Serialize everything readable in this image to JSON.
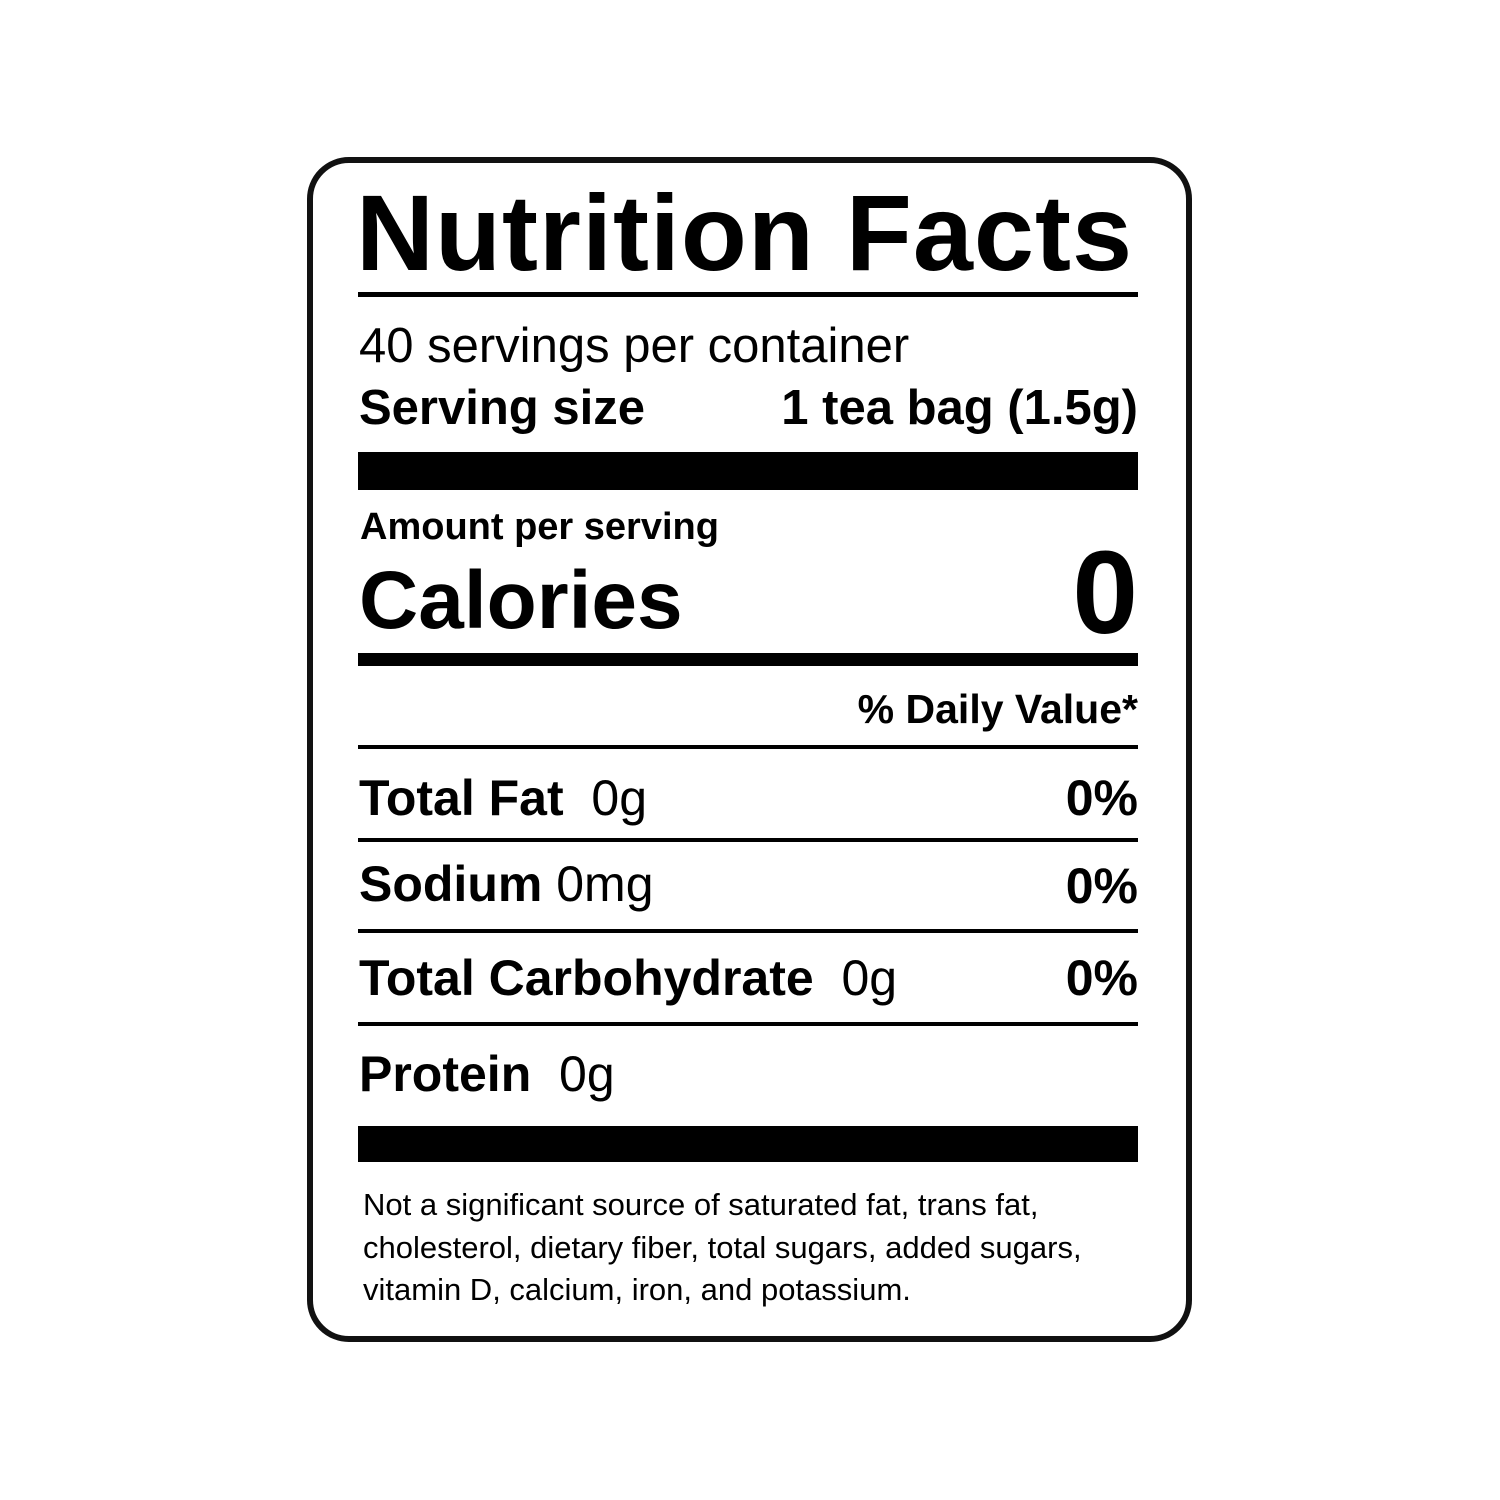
{
  "title": "Nutrition Facts",
  "servings_per_container": "40 servings per container",
  "serving_size": {
    "label": "Serving size",
    "value": "1 tea bag (1.5g)"
  },
  "amount_per_serving": "Amount per serving",
  "calories": {
    "label": "Calories",
    "value": "0"
  },
  "daily_value_header": "% Daily Value*",
  "nutrients": [
    {
      "name": "Total Fat",
      "amount": "0g",
      "dv": "0%"
    },
    {
      "name": "Sodium",
      "amount": "0mg",
      "dv": "0%"
    },
    {
      "name": "Total Carbohydrate",
      "amount": "0g",
      "dv": "0%"
    },
    {
      "name": "Protein",
      "amount": "0g",
      "dv": ""
    }
  ],
  "footnote": [
    "Not a significant source of saturated fat, trans fat,",
    "cholesterol, dietary fiber, total sugars, added sugars,",
    "vitamin D, calcium, iron, and potassium."
  ]
}
